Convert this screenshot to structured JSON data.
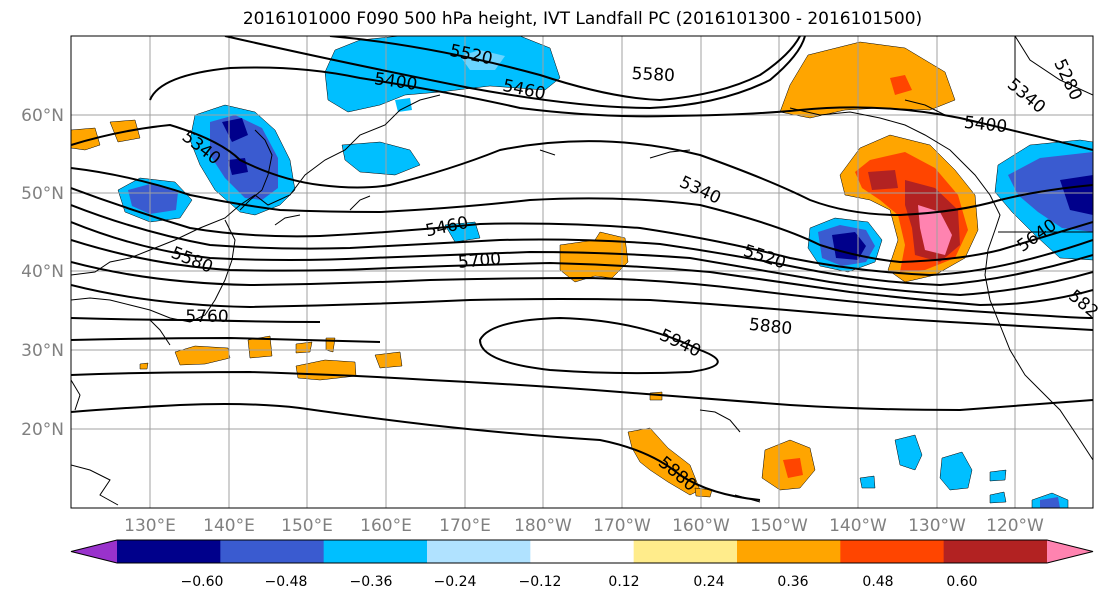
{
  "title": "2016101000 F090 500 hPa height, IVT Landfall PC (2016101300 - 2016101500)",
  "lat_labels": [
    "60°N",
    "50°N",
    "40°N",
    "30°N",
    "20°N"
  ],
  "lon_labels": [
    "130°E",
    "140°E",
    "150°E",
    "160°E",
    "170°E",
    "180°W",
    "170°W",
    "160°W",
    "150°W",
    "140°W",
    "130°W",
    "120°W"
  ],
  "contour_labels": [
    "5520",
    "5580",
    "5400",
    "5460",
    "5340",
    "5400",
    "5340",
    "5280",
    "5340",
    "5460",
    "5580",
    "5700",
    "5520",
    "5640",
    "5760",
    "5880",
    "5940",
    "5880",
    "582"
  ],
  "colorbar": {
    "ticks": [
      "−0.60",
      "−0.48",
      "−0.36",
      "−0.24",
      "−0.12",
      "0.12",
      "0.24",
      "0.36",
      "0.48",
      "0.60"
    ],
    "colors": [
      "#9932cc",
      "#00008b",
      "#3a5bd0",
      "#00bfff",
      "#b0e2ff",
      "#ffffff",
      "#ffec8b",
      "#ffa500",
      "#ff4500",
      "#b22222",
      "#ff83b0"
    ]
  },
  "fill_colors": {
    "light_yellow": "#ffec8b",
    "orange": "#ffa500",
    "red_orange": "#ff4500",
    "dark_red": "#b22222",
    "pink": "#ff83b0",
    "light_blue": "#b0e2ff",
    "deep_sky_blue": "#00bfff",
    "royal_blue": "#3a5bd0",
    "navy": "#00008b"
  }
}
